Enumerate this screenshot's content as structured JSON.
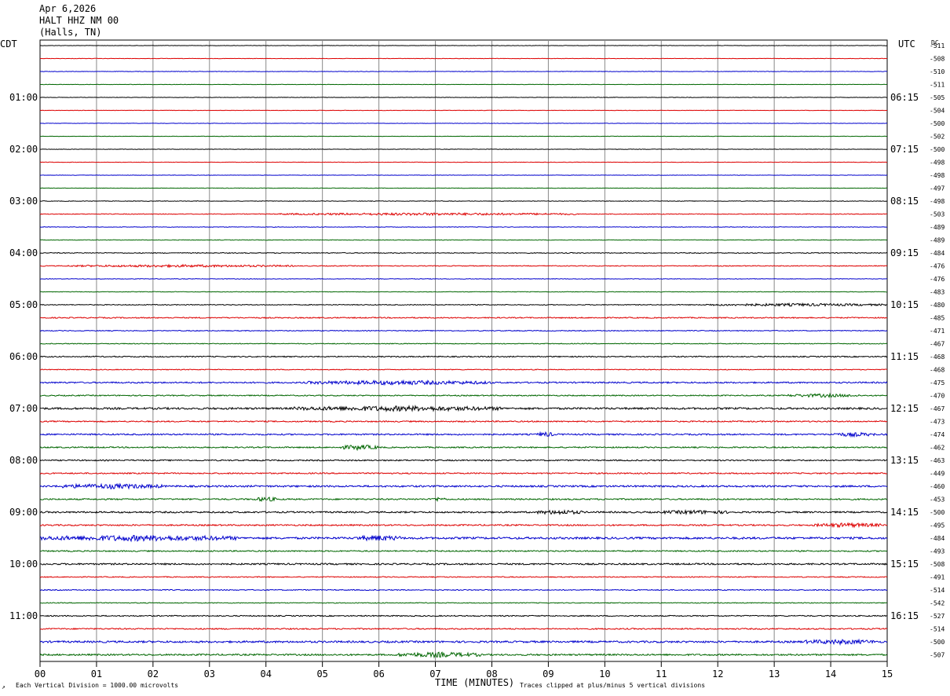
{
  "header": {
    "date": "Apr 6,2026",
    "station": "HALT HHZ NM 00",
    "location": "(Halls, TN)"
  },
  "left_label": "CDT",
  "right_label": "UTC",
  "dc_label": "DC",
  "footer": {
    "left_mark": "↗",
    "vertical_division": "Each Vertical Division = 1000.00 microvolts",
    "xlabel": "TIME (MINUTES)",
    "clip_note": "Traces clipped at plus/minus 5 vertical divisions"
  },
  "colors": {
    "trace_cycle": [
      "#000000",
      "#dd0000",
      "#0000cc",
      "#006600"
    ],
    "grid": "#888888",
    "frame": "#000000"
  },
  "chart_data": {
    "type": "line",
    "xlabel": "TIME (MINUTES)",
    "xlim": [
      0,
      15
    ],
    "x_ticks": [
      "00",
      "01",
      "02",
      "03",
      "04",
      "05",
      "06",
      "07",
      "08",
      "09",
      "10",
      "11",
      "12",
      "13",
      "14",
      "15"
    ],
    "traces_per_hour": 4,
    "local_hour_labels": [
      {
        "trace": 4,
        "label": "01:00"
      },
      {
        "trace": 8,
        "label": "02:00"
      },
      {
        "trace": 12,
        "label": "03:00"
      },
      {
        "trace": 16,
        "label": "04:00"
      },
      {
        "trace": 20,
        "label": "05:00"
      },
      {
        "trace": 24,
        "label": "06:00"
      },
      {
        "trace": 28,
        "label": "07:00"
      },
      {
        "trace": 32,
        "label": "08:00"
      },
      {
        "trace": 36,
        "label": "09:00"
      },
      {
        "trace": 40,
        "label": "10:00"
      },
      {
        "trace": 44,
        "label": "11:00"
      }
    ],
    "utc_hour_labels": [
      {
        "trace": 4,
        "label": "06:15"
      },
      {
        "trace": 8,
        "label": "07:15"
      },
      {
        "trace": 12,
        "label": "08:15"
      },
      {
        "trace": 16,
        "label": "09:15"
      },
      {
        "trace": 20,
        "label": "10:15"
      },
      {
        "trace": 24,
        "label": "11:15"
      },
      {
        "trace": 28,
        "label": "12:15"
      },
      {
        "trace": 32,
        "label": "13:15"
      },
      {
        "trace": 36,
        "label": "14:15"
      },
      {
        "trace": 40,
        "label": "15:15"
      },
      {
        "trace": 44,
        "label": "16:15"
      }
    ],
    "dc_offsets": [
      "-511",
      "-508",
      "-510",
      "-511",
      "-505",
      "-504",
      "-500",
      "-502",
      "-500",
      "-498",
      "-498",
      "-497",
      "-498",
      "-503",
      "-489",
      "-489",
      "-484",
      "-476",
      "-476",
      "-483",
      "-480",
      "-485",
      "-471",
      "-467",
      "-468",
      "-468",
      "-475",
      "-470",
      "-467",
      "-473",
      "-474",
      "-462",
      "-463",
      "-449",
      "-460",
      "-453",
      "-500",
      "-495",
      "-484",
      "-493",
      "-508",
      "-491",
      "-514",
      "-542",
      "-527",
      "-514",
      "-500",
      "-507"
    ],
    "trace_activity": [
      {
        "base": 0.25,
        "bursts": []
      },
      {
        "base": 0.25,
        "bursts": []
      },
      {
        "base": 0.3,
        "bursts": []
      },
      {
        "base": 0.25,
        "bursts": []
      },
      {
        "base": 0.3,
        "bursts": []
      },
      {
        "base": 0.25,
        "bursts": []
      },
      {
        "base": 0.25,
        "bursts": []
      },
      {
        "base": 0.25,
        "bursts": []
      },
      {
        "base": 0.3,
        "bursts": []
      },
      {
        "base": 0.3,
        "bursts": []
      },
      {
        "base": 0.25,
        "bursts": []
      },
      {
        "base": 0.3,
        "bursts": []
      },
      {
        "base": 0.35,
        "bursts": []
      },
      {
        "base": 0.45,
        "bursts": [
          {
            "start": 4.2,
            "end": 9.5,
            "amp": 1.2
          }
        ]
      },
      {
        "base": 0.35,
        "bursts": []
      },
      {
        "base": 0.35,
        "bursts": []
      },
      {
        "base": 0.5,
        "bursts": []
      },
      {
        "base": 0.5,
        "bursts": [
          {
            "start": 0.5,
            "end": 4.5,
            "amp": 1.1
          }
        ]
      },
      {
        "base": 0.35,
        "bursts": []
      },
      {
        "base": 0.35,
        "bursts": []
      },
      {
        "base": 0.5,
        "bursts": [
          {
            "start": 11.8,
            "end": 15,
            "amp": 1.3
          }
        ]
      },
      {
        "base": 0.7,
        "bursts": []
      },
      {
        "base": 0.5,
        "bursts": []
      },
      {
        "base": 0.5,
        "bursts": []
      },
      {
        "base": 0.7,
        "bursts": []
      },
      {
        "base": 0.5,
        "bursts": []
      },
      {
        "base": 0.9,
        "bursts": [
          {
            "start": 4.7,
            "end": 8.0,
            "amp": 2.0
          }
        ]
      },
      {
        "base": 0.7,
        "bursts": [
          {
            "start": 13.2,
            "end": 14.5,
            "amp": 1.6
          }
        ]
      },
      {
        "base": 1.2,
        "bursts": [
          {
            "start": 4.5,
            "end": 8.2,
            "amp": 2.2
          }
        ]
      },
      {
        "base": 0.8,
        "bursts": []
      },
      {
        "base": 0.9,
        "bursts": [
          {
            "start": 8.8,
            "end": 9.1,
            "amp": 2.4
          },
          {
            "start": 14.0,
            "end": 14.8,
            "amp": 1.8
          }
        ]
      },
      {
        "base": 0.8,
        "bursts": [
          {
            "start": 5.3,
            "end": 6.0,
            "amp": 2.6
          }
        ]
      },
      {
        "base": 0.8,
        "bursts": []
      },
      {
        "base": 0.8,
        "bursts": []
      },
      {
        "base": 1.1,
        "bursts": [
          {
            "start": 0.3,
            "end": 2.2,
            "amp": 2.2
          }
        ]
      },
      {
        "base": 0.9,
        "bursts": [
          {
            "start": 3.8,
            "end": 4.2,
            "amp": 2.2
          },
          {
            "start": 6.9,
            "end": 7.2,
            "amp": 1.6
          }
        ]
      },
      {
        "base": 1.0,
        "bursts": [
          {
            "start": 8.8,
            "end": 9.6,
            "amp": 2.0
          },
          {
            "start": 11.0,
            "end": 12.2,
            "amp": 1.6
          }
        ]
      },
      {
        "base": 0.9,
        "bursts": [
          {
            "start": 13.7,
            "end": 14.9,
            "amp": 2.0
          }
        ]
      },
      {
        "base": 1.3,
        "bursts": [
          {
            "start": 0.0,
            "end": 3.5,
            "amp": 2.6
          },
          {
            "start": 5.6,
            "end": 6.4,
            "amp": 2.4
          }
        ]
      },
      {
        "base": 0.8,
        "bursts": []
      },
      {
        "base": 1.0,
        "bursts": []
      },
      {
        "base": 0.6,
        "bursts": []
      },
      {
        "base": 0.6,
        "bursts": []
      },
      {
        "base": 0.5,
        "bursts": []
      },
      {
        "base": 0.7,
        "bursts": []
      },
      {
        "base": 0.8,
        "bursts": []
      },
      {
        "base": 1.2,
        "bursts": [
          {
            "start": 13.5,
            "end": 14.8,
            "amp": 2.0
          }
        ]
      },
      {
        "base": 1.0,
        "bursts": [
          {
            "start": 6.3,
            "end": 7.8,
            "amp": 2.4
          }
        ]
      }
    ]
  }
}
